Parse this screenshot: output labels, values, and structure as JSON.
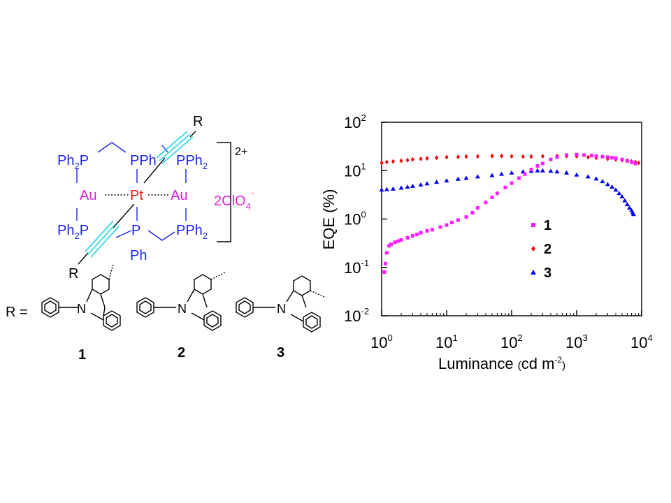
{
  "scheme": {
    "atoms": {
      "r_top": "R",
      "r_bottom": "R",
      "pt": "Pt",
      "au_left": "Au",
      "au_right": "Au",
      "ph2p_top_left": "Ph2P",
      "pph2_top_mid": "PPh2",
      "pph2_top_right": "PPh2",
      "ph2p_bottom_left": "Ph2P",
      "p_bottom": "P",
      "ph_bottom": "Ph",
      "pph2_bottom_right": "PPh2",
      "charge": "2+",
      "counter_anion": "2ClO4-"
    },
    "r_definition": "R =",
    "n_atom": "N",
    "compound_labels": [
      "1",
      "2",
      "3"
    ]
  },
  "colors": {
    "phosphine": "#1a24e6",
    "metal_pt": "#e6141a",
    "metal_au": "#e020dc",
    "alkyne": "#22d2e8",
    "black": "#000000",
    "series_1": "#ff1aff",
    "series_2": "#ff0000",
    "series_3": "#0000ff"
  },
  "chart_data": {
    "type": "scatter",
    "xlabel": "Luminance (cd m^-2)",
    "ylabel": "EQE (%)",
    "x_scale": "log",
    "y_scale": "log",
    "xlim": [
      1,
      10000
    ],
    "ylim": [
      0.01,
      100
    ],
    "x_ticks": [
      1,
      10,
      100,
      1000,
      10000
    ],
    "y_ticks": [
      0.01,
      0.1,
      1,
      10,
      100
    ],
    "x_tick_labels": [
      {
        "base": "10",
        "exp": "0"
      },
      {
        "base": "10",
        "exp": "1"
      },
      {
        "base": "10",
        "exp": "2"
      },
      {
        "base": "10",
        "exp": "3"
      },
      {
        "base": "10",
        "exp": "4"
      }
    ],
    "y_tick_labels": [
      {
        "base": "10",
        "exp": "-2"
      },
      {
        "base": "10",
        "exp": "-1"
      },
      {
        "base": "10",
        "exp": "0"
      },
      {
        "base": "10",
        "exp": "1"
      },
      {
        "base": "10",
        "exp": "2"
      }
    ],
    "grid": false,
    "legend_position": "center-right",
    "series": [
      {
        "name": "1",
        "marker": "square",
        "x": [
          1.1,
          1.15,
          1.2,
          1.3,
          1.4,
          1.6,
          1.8,
          2.0,
          2.5,
          3.0,
          3.5,
          4.0,
          5.0,
          6.0,
          8.0,
          10,
          12,
          15,
          20,
          25,
          30,
          40,
          50,
          60,
          80,
          100,
          130,
          160,
          200,
          250,
          300,
          400,
          500,
          700,
          1000,
          1300,
          1700,
          2000,
          2500,
          3000,
          3500,
          4000,
          5000,
          6000,
          7000,
          8000
        ],
        "y": [
          0.08,
          0.12,
          0.2,
          0.28,
          0.3,
          0.33,
          0.35,
          0.37,
          0.41,
          0.45,
          0.48,
          0.52,
          0.57,
          0.6,
          0.68,
          0.75,
          0.85,
          0.95,
          1.1,
          1.35,
          1.7,
          2.2,
          2.8,
          3.4,
          4.5,
          5.5,
          7.0,
          8.5,
          10.5,
          12.5,
          14.0,
          17.0,
          19.0,
          21.0,
          21.5,
          21.0,
          20.5,
          20.0,
          19.5,
          19.0,
          18.5,
          18.0,
          17.0,
          16.0,
          15.0,
          14.0
        ]
      },
      {
        "name": "2",
        "marker": "diamond",
        "x": [
          1.0,
          1.2,
          1.5,
          2.0,
          2.5,
          3.0,
          4.0,
          5.0,
          7.0,
          10,
          15,
          20,
          30,
          50,
          70,
          100,
          150,
          200,
          300,
          500,
          700,
          1000,
          1500,
          2000,
          3000,
          4000,
          5000,
          6000,
          7000,
          8000,
          9000
        ],
        "y": [
          14.5,
          15.0,
          15.5,
          16.0,
          16.5,
          17.0,
          17.5,
          18.0,
          18.5,
          19.0,
          19.2,
          19.5,
          19.7,
          20.0,
          20.0,
          19.8,
          19.5,
          19.5,
          19.8,
          20.0,
          20.0,
          19.8,
          19.0,
          18.5,
          17.5,
          17.0,
          16.5,
          16.0,
          15.5,
          15.0,
          14.5
        ]
      },
      {
        "name": "3",
        "marker": "triangle",
        "x": [
          1.0,
          1.2,
          1.5,
          2.0,
          2.5,
          3.0,
          4.0,
          5.0,
          7.0,
          10,
          15,
          20,
          30,
          50,
          70,
          100,
          150,
          200,
          250,
          300,
          400,
          500,
          700,
          1000,
          1500,
          2000,
          2500,
          3000,
          3500,
          4000,
          4500,
          5000,
          5500,
          6000,
          6500,
          7000,
          7300,
          7500
        ],
        "y": [
          4.0,
          4.1,
          4.2,
          4.4,
          4.6,
          4.8,
          5.1,
          5.4,
          5.8,
          6.2,
          6.7,
          7.0,
          7.5,
          8.0,
          8.5,
          9.0,
          9.5,
          9.8,
          10.0,
          10.0,
          9.8,
          9.5,
          9.0,
          8.2,
          7.5,
          6.8,
          6.0,
          5.2,
          4.6,
          4.0,
          3.4,
          2.9,
          2.4,
          2.0,
          1.7,
          1.5,
          1.35,
          1.25
        ]
      }
    ]
  }
}
